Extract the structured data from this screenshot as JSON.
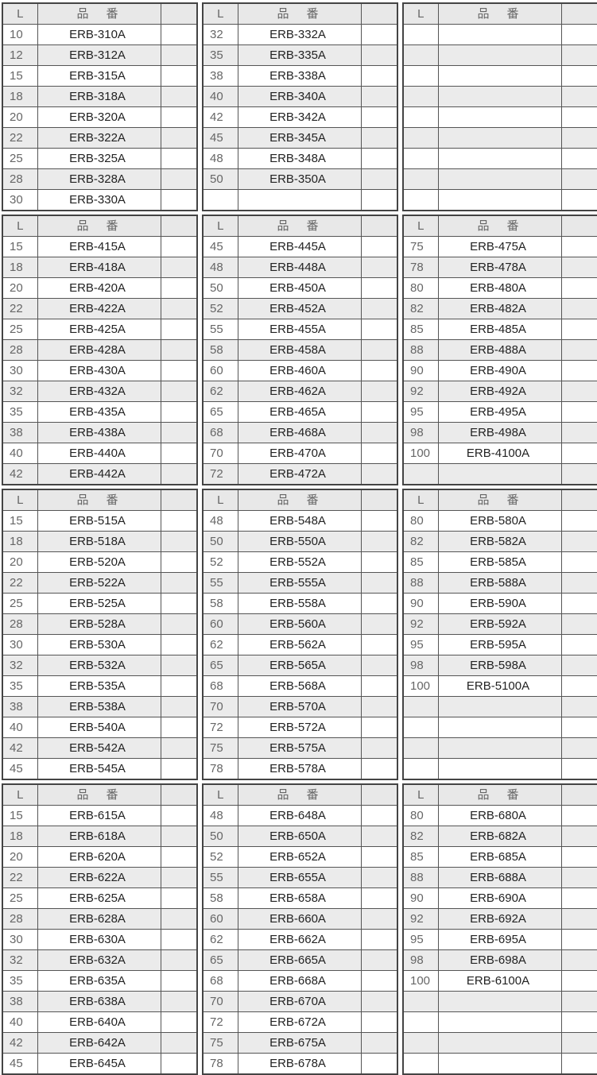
{
  "header": {
    "l": "L",
    "code": "品番"
  },
  "bands": [
    [
      {
        "rows": [
          [
            "10",
            "ERB-310A"
          ],
          [
            "12",
            "ERB-312A"
          ],
          [
            "15",
            "ERB-315A"
          ],
          [
            "18",
            "ERB-318A"
          ],
          [
            "20",
            "ERB-320A"
          ],
          [
            "22",
            "ERB-322A"
          ],
          [
            "25",
            "ERB-325A"
          ],
          [
            "28",
            "ERB-328A"
          ],
          [
            "30",
            "ERB-330A"
          ]
        ]
      },
      {
        "rows": [
          [
            "32",
            "ERB-332A"
          ],
          [
            "35",
            "ERB-335A"
          ],
          [
            "38",
            "ERB-338A"
          ],
          [
            "40",
            "ERB-340A"
          ],
          [
            "42",
            "ERB-342A"
          ],
          [
            "45",
            "ERB-345A"
          ],
          [
            "48",
            "ERB-348A"
          ],
          [
            "50",
            "ERB-350A"
          ]
        ]
      },
      {
        "rows": []
      }
    ],
    [
      {
        "rows": [
          [
            "15",
            "ERB-415A"
          ],
          [
            "18",
            "ERB-418A"
          ],
          [
            "20",
            "ERB-420A"
          ],
          [
            "22",
            "ERB-422A"
          ],
          [
            "25",
            "ERB-425A"
          ],
          [
            "28",
            "ERB-428A"
          ],
          [
            "30",
            "ERB-430A"
          ],
          [
            "32",
            "ERB-432A"
          ],
          [
            "35",
            "ERB-435A"
          ],
          [
            "38",
            "ERB-438A"
          ],
          [
            "40",
            "ERB-440A"
          ],
          [
            "42",
            "ERB-442A"
          ]
        ]
      },
      {
        "rows": [
          [
            "45",
            "ERB-445A"
          ],
          [
            "48",
            "ERB-448A"
          ],
          [
            "50",
            "ERB-450A"
          ],
          [
            "52",
            "ERB-452A"
          ],
          [
            "55",
            "ERB-455A"
          ],
          [
            "58",
            "ERB-458A"
          ],
          [
            "60",
            "ERB-460A"
          ],
          [
            "62",
            "ERB-462A"
          ],
          [
            "65",
            "ERB-465A"
          ],
          [
            "68",
            "ERB-468A"
          ],
          [
            "70",
            "ERB-470A"
          ],
          [
            "72",
            "ERB-472A"
          ]
        ]
      },
      {
        "rows": [
          [
            "75",
            "ERB-475A"
          ],
          [
            "78",
            "ERB-478A"
          ],
          [
            "80",
            "ERB-480A"
          ],
          [
            "82",
            "ERB-482A"
          ],
          [
            "85",
            "ERB-485A"
          ],
          [
            "88",
            "ERB-488A"
          ],
          [
            "90",
            "ERB-490A"
          ],
          [
            "92",
            "ERB-492A"
          ],
          [
            "95",
            "ERB-495A"
          ],
          [
            "98",
            "ERB-498A"
          ],
          [
            "100",
            "ERB-4100A"
          ]
        ]
      }
    ],
    [
      {
        "rows": [
          [
            "15",
            "ERB-515A"
          ],
          [
            "18",
            "ERB-518A"
          ],
          [
            "20",
            "ERB-520A"
          ],
          [
            "22",
            "ERB-522A"
          ],
          [
            "25",
            "ERB-525A"
          ],
          [
            "28",
            "ERB-528A"
          ],
          [
            "30",
            "ERB-530A"
          ],
          [
            "32",
            "ERB-532A"
          ],
          [
            "35",
            "ERB-535A"
          ],
          [
            "38",
            "ERB-538A"
          ],
          [
            "40",
            "ERB-540A"
          ],
          [
            "42",
            "ERB-542A"
          ],
          [
            "45",
            "ERB-545A"
          ]
        ]
      },
      {
        "rows": [
          [
            "48",
            "ERB-548A"
          ],
          [
            "50",
            "ERB-550A"
          ],
          [
            "52",
            "ERB-552A"
          ],
          [
            "55",
            "ERB-555A"
          ],
          [
            "58",
            "ERB-558A"
          ],
          [
            "60",
            "ERB-560A"
          ],
          [
            "62",
            "ERB-562A"
          ],
          [
            "65",
            "ERB-565A"
          ],
          [
            "68",
            "ERB-568A"
          ],
          [
            "70",
            "ERB-570A"
          ],
          [
            "72",
            "ERB-572A"
          ],
          [
            "75",
            "ERB-575A"
          ],
          [
            "78",
            "ERB-578A"
          ]
        ]
      },
      {
        "rows": [
          [
            "80",
            "ERB-580A"
          ],
          [
            "82",
            "ERB-582A"
          ],
          [
            "85",
            "ERB-585A"
          ],
          [
            "88",
            "ERB-588A"
          ],
          [
            "90",
            "ERB-590A"
          ],
          [
            "92",
            "ERB-592A"
          ],
          [
            "95",
            "ERB-595A"
          ],
          [
            "98",
            "ERB-598A"
          ],
          [
            "100",
            "ERB-5100A"
          ]
        ]
      }
    ],
    [
      {
        "rows": [
          [
            "15",
            "ERB-615A"
          ],
          [
            "18",
            "ERB-618A"
          ],
          [
            "20",
            "ERB-620A"
          ],
          [
            "22",
            "ERB-622A"
          ],
          [
            "25",
            "ERB-625A"
          ],
          [
            "28",
            "ERB-628A"
          ],
          [
            "30",
            "ERB-630A"
          ],
          [
            "32",
            "ERB-632A"
          ],
          [
            "35",
            "ERB-635A"
          ],
          [
            "38",
            "ERB-638A"
          ],
          [
            "40",
            "ERB-640A"
          ],
          [
            "42",
            "ERB-642A"
          ],
          [
            "45",
            "ERB-645A"
          ]
        ]
      },
      {
        "rows": [
          [
            "48",
            "ERB-648A"
          ],
          [
            "50",
            "ERB-650A"
          ],
          [
            "52",
            "ERB-652A"
          ],
          [
            "55",
            "ERB-655A"
          ],
          [
            "58",
            "ERB-658A"
          ],
          [
            "60",
            "ERB-660A"
          ],
          [
            "62",
            "ERB-662A"
          ],
          [
            "65",
            "ERB-665A"
          ],
          [
            "68",
            "ERB-668A"
          ],
          [
            "70",
            "ERB-670A"
          ],
          [
            "72",
            "ERB-672A"
          ],
          [
            "75",
            "ERB-675A"
          ],
          [
            "78",
            "ERB-678A"
          ]
        ]
      },
      {
        "rows": [
          [
            "80",
            "ERB-680A"
          ],
          [
            "82",
            "ERB-682A"
          ],
          [
            "85",
            "ERB-685A"
          ],
          [
            "88",
            "ERB-688A"
          ],
          [
            "90",
            "ERB-690A"
          ],
          [
            "92",
            "ERB-692A"
          ],
          [
            "95",
            "ERB-695A"
          ],
          [
            "98",
            "ERB-698A"
          ],
          [
            "100",
            "ERB-6100A"
          ]
        ]
      }
    ]
  ]
}
